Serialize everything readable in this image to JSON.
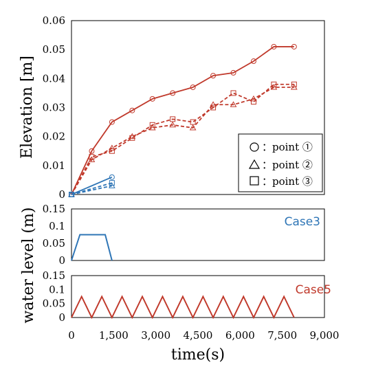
{
  "chart_data": [
    {
      "type": "line",
      "ylabel": "Elevation [m]",
      "ylim": [
        0,
        0.06
      ],
      "xlim": [
        0,
        9000
      ],
      "yticks": [
        "0",
        "0.01",
        "0.02",
        "0.03",
        "0.04",
        "0.05",
        "0.06"
      ],
      "yticks_values": [
        0,
        0.01,
        0.02,
        0.03,
        0.04,
        0.05,
        0.06
      ],
      "legend": {
        "placement": "lower-right",
        "entries": [
          {
            "marker": "circle",
            "label": "：point ①"
          },
          {
            "marker": "triangle",
            "label": "：point ②"
          },
          {
            "marker": "square",
            "label": "：point ③"
          }
        ]
      },
      "series": [
        {
          "case": "Case5",
          "marker": "circle",
          "color": "#c0392b",
          "dash": "solid",
          "x": [
            0,
            720,
            1440,
            2160,
            2880,
            3600,
            4320,
            5040,
            5760,
            6480,
            7200,
            7920
          ],
          "y": [
            0,
            0.015,
            0.025,
            0.029,
            0.033,
            0.035,
            0.037,
            0.041,
            0.042,
            0.046,
            0.051,
            0.051
          ]
        },
        {
          "case": "Case5",
          "marker": "triangle",
          "color": "#c0392b",
          "dash": "dashed",
          "x": [
            0,
            720,
            1440,
            2160,
            2880,
            3600,
            4320,
            5040,
            5760,
            6480,
            7200,
            7920
          ],
          "y": [
            0,
            0.012,
            0.016,
            0.02,
            0.023,
            0.024,
            0.023,
            0.031,
            0.031,
            0.033,
            0.037,
            0.037
          ]
        },
        {
          "case": "Case5",
          "marker": "square",
          "color": "#c0392b",
          "dash": "dashed",
          "x": [
            0,
            720,
            1440,
            2160,
            2880,
            3600,
            4320,
            5040,
            5760,
            6480,
            7200,
            7920
          ],
          "y": [
            0,
            0.013,
            0.015,
            0.0195,
            0.024,
            0.026,
            0.025,
            0.03,
            0.035,
            0.032,
            0.038,
            0.038
          ]
        },
        {
          "case": "Case3",
          "marker": "circle",
          "color": "#2e75b6",
          "dash": "solid",
          "x": [
            0,
            1440
          ],
          "y": [
            0,
            0.006
          ]
        },
        {
          "case": "Case3",
          "marker": "triangle",
          "color": "#2e75b6",
          "dash": "dashed",
          "x": [
            0,
            1440
          ],
          "y": [
            0,
            0.003
          ]
        },
        {
          "case": "Case3",
          "marker": "square",
          "color": "#2e75b6",
          "dash": "dashed",
          "x": [
            0,
            1440
          ],
          "y": [
            0,
            0.004
          ]
        }
      ]
    },
    {
      "type": "line",
      "label": "Case3",
      "color": "#2e75b6",
      "ylim": [
        0,
        0.15
      ],
      "yticks": [
        "0",
        "0.05",
        "0.1",
        "0.15"
      ],
      "yticks_values": [
        0,
        0.05,
        0.1,
        0.15
      ],
      "x": [
        0,
        300,
        1200,
        1440
      ],
      "y": [
        0,
        0.075,
        0.075,
        0
      ]
    },
    {
      "type": "line",
      "label": "Case5",
      "color": "#c0392b",
      "ylim": [
        0,
        0.15
      ],
      "yticks": [
        "0",
        "0.05",
        "0.1",
        "0.15"
      ],
      "yticks_values": [
        0,
        0.05,
        0.1,
        0.15
      ],
      "x": [
        0,
        360,
        720,
        1080,
        1440,
        1800,
        2160,
        2520,
        2880,
        3240,
        3600,
        3960,
        4320,
        4680,
        5040,
        5400,
        5760,
        6120,
        6480,
        6840,
        7200,
        7560,
        7920
      ],
      "y": [
        0,
        0.075,
        0,
        0.075,
        0,
        0.075,
        0,
        0.075,
        0,
        0.075,
        0,
        0.075,
        0,
        0.075,
        0,
        0.075,
        0,
        0.075,
        0,
        0.075,
        0,
        0.075,
        0
      ]
    }
  ],
  "shared_axes": {
    "xlabel": "time(s)",
    "ylabel_bottom": "water level (m)",
    "xticks": [
      "0",
      "1,500",
      "3,000",
      "4,500",
      "6,000",
      "7,500",
      "9,000"
    ],
    "xticks_values": [
      0,
      1500,
      3000,
      4500,
      6000,
      7500,
      9000
    ]
  }
}
